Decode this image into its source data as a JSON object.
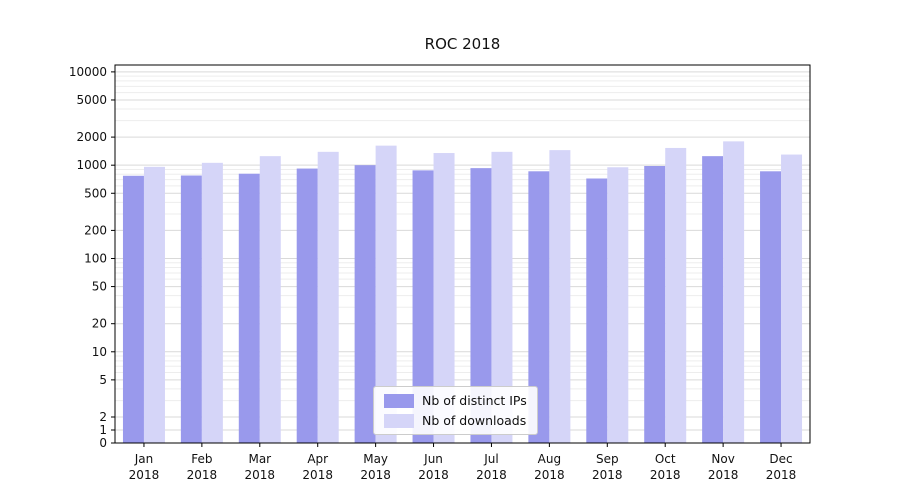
{
  "chart_data": {
    "type": "bar",
    "title": "ROC 2018",
    "scale": "symlog",
    "grid": true,
    "legend_position": "lower center",
    "year": "2018",
    "categories": [
      "Jan",
      "Feb",
      "Mar",
      "Apr",
      "May",
      "Jun",
      "Jul",
      "Aug",
      "Sep",
      "Oct",
      "Nov",
      "Dec"
    ],
    "series": [
      {
        "name": "Nb of distinct IPs",
        "color": "#9999ec",
        "values": [
          770,
          775,
          810,
          920,
          1000,
          880,
          930,
          860,
          720,
          980,
          1250,
          860
        ]
      },
      {
        "name": "Nb of downloads",
        "color": "#d5d5f8",
        "values": [
          960,
          1060,
          1250,
          1390,
          1620,
          1350,
          1390,
          1450,
          950,
          1530,
          1800,
          1300
        ]
      }
    ],
    "yticks": [
      0,
      1,
      2,
      5,
      10,
      20,
      50,
      100,
      200,
      500,
      1000,
      2000,
      5000,
      10000
    ],
    "ylim": [
      0,
      12000
    ],
    "xlabel": "",
    "ylabel": ""
  }
}
